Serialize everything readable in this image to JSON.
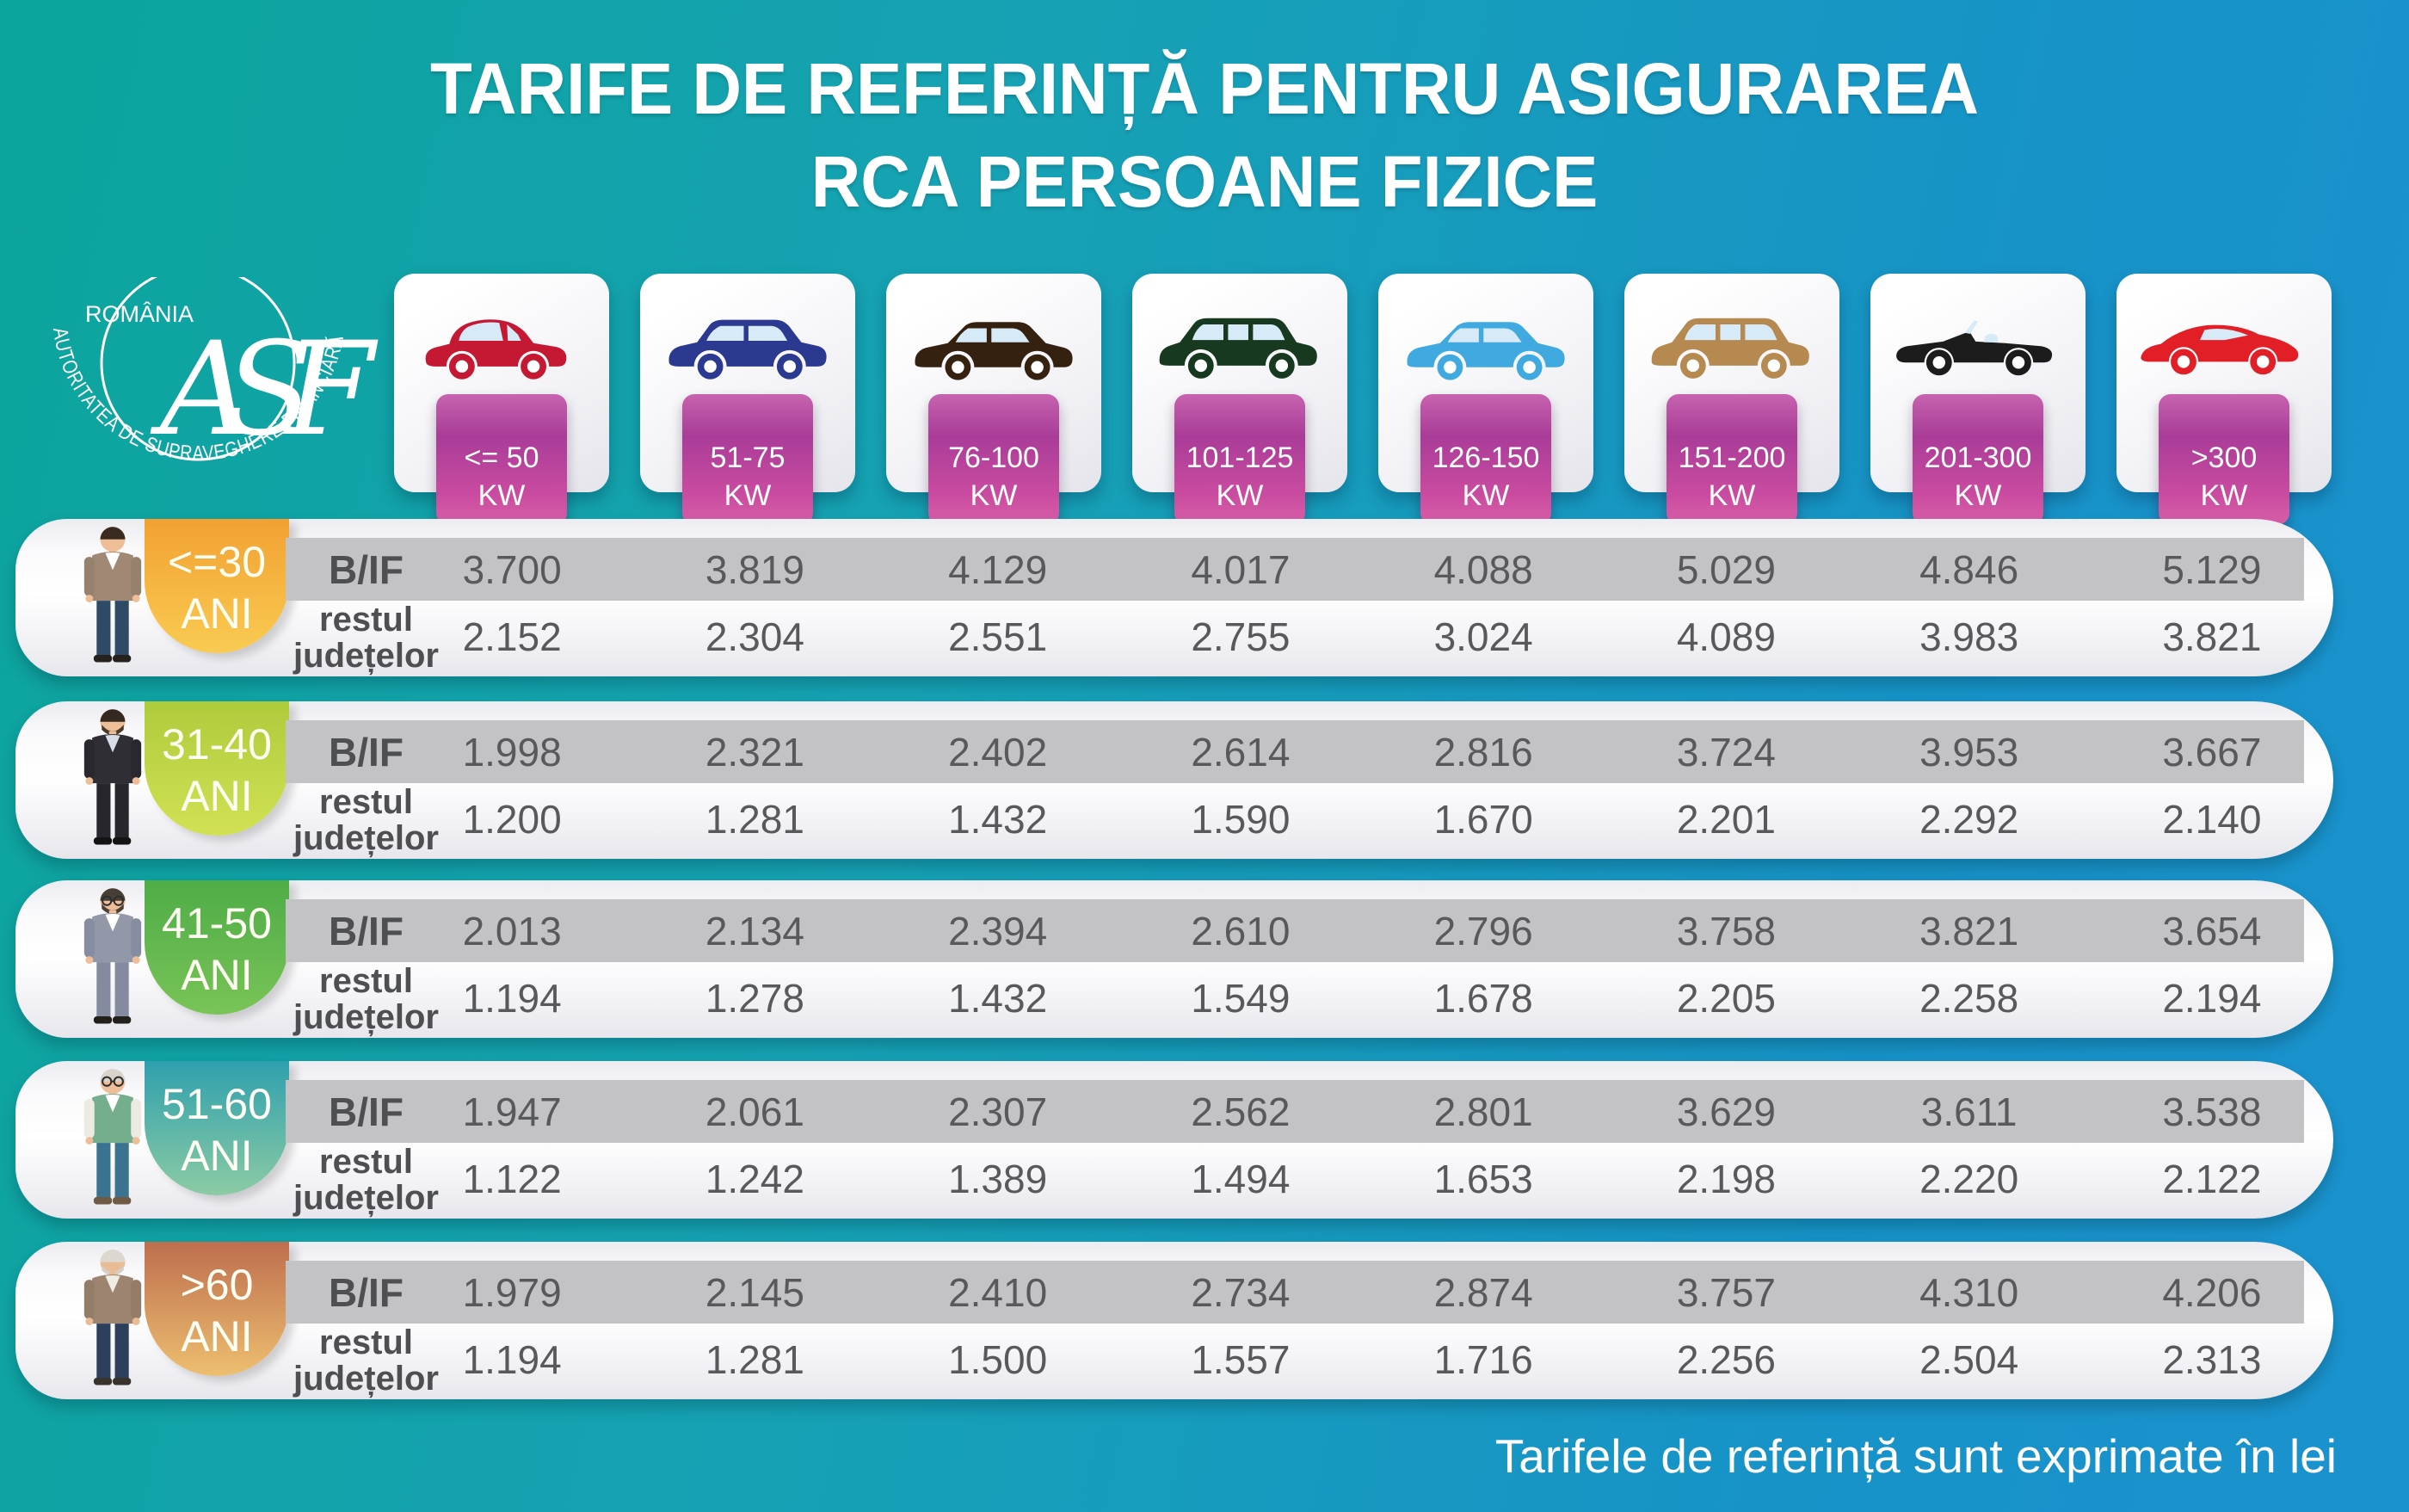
{
  "title": {
    "line1": "TARIFE DE REFERINȚĂ PENTRU ASIGURAREA",
    "line2": "RCA PERSOANE FIZICE"
  },
  "logo": {
    "country": "ROMÂNIA",
    "monogram": "ASF",
    "organization": "AUTORITATEA DE SUPRAVEGHERE FINANCIARĂ"
  },
  "footer_note": "Tarifele de referință sunt exprimate în lei",
  "row_labels": {
    "bif": "B/IF",
    "rest_line1": "restul",
    "rest_line2": "județelor"
  },
  "colors": {
    "kw_badge_magenta": "#B03A9A",
    "bif_band_gray": "#C3C3C6",
    "value_text": "#58595B",
    "background_teal": "#0CA49C",
    "background_blue": "#1B92CE"
  },
  "power_categories": [
    {
      "range": "<= 50",
      "unit": "KW",
      "icon": "car-city-hatchback-icon",
      "shape": "hatchback",
      "color": "#C41833"
    },
    {
      "range": "51-75",
      "unit": "KW",
      "icon": "car-crossover-icon",
      "shape": "suv",
      "color": "#2B3990"
    },
    {
      "range": "76-100",
      "unit": "KW",
      "icon": "car-sedan-brown-icon",
      "shape": "sedan",
      "color": "#35210F"
    },
    {
      "range": "101-125",
      "unit": "KW",
      "icon": "car-minivan-icon",
      "shape": "minivan",
      "color": "#17391F"
    },
    {
      "range": "126-150",
      "unit": "KW",
      "icon": "car-sedan-blue-icon",
      "shape": "sedan",
      "color": "#3FA9E0"
    },
    {
      "range": "151-200",
      "unit": "KW",
      "icon": "car-suv-tan-icon",
      "shape": "minivan",
      "color": "#B5894F"
    },
    {
      "range": "201-300",
      "unit": "KW",
      "icon": "car-convertible-icon",
      "shape": "convertible",
      "color": "#1C1C1C"
    },
    {
      "range": ">300",
      "unit": "KW",
      "icon": "car-sports-icon",
      "shape": "sports",
      "color": "#E21F26"
    }
  ],
  "age_groups": [
    {
      "range": "<=30",
      "unit": "ANI",
      "icon": "person-under-30-icon",
      "badge_top": "#F2A132",
      "badge_bottom": "#F9CB52",
      "bif": [
        "3.700",
        "3.819",
        "4.129",
        "4.017",
        "4.088",
        "5.029",
        "4.846",
        "5.129"
      ],
      "rest": [
        "2.152",
        "2.304",
        "2.551",
        "2.755",
        "3.024",
        "4.089",
        "3.983",
        "3.821"
      ]
    },
    {
      "range": "31-40",
      "unit": "ANI",
      "icon": "person-31-40-icon",
      "badge_top": "#AECB3C",
      "badge_bottom": "#D2E154",
      "bif": [
        "1.998",
        "2.321",
        "2.402",
        "2.614",
        "2.816",
        "3.724",
        "3.953",
        "3.667"
      ],
      "rest": [
        "1.200",
        "1.281",
        "1.432",
        "1.590",
        "1.670",
        "2.201",
        "2.292",
        "2.140"
      ]
    },
    {
      "range": "41-50",
      "unit": "ANI",
      "icon": "person-41-50-icon",
      "badge_top": "#4FAC47",
      "badge_bottom": "#79C457",
      "bif": [
        "2.013",
        "2.134",
        "2.394",
        "2.610",
        "2.796",
        "3.758",
        "3.821",
        "3.654"
      ],
      "rest": [
        "1.194",
        "1.278",
        "1.432",
        "1.549",
        "1.678",
        "2.205",
        "2.258",
        "2.194"
      ]
    },
    {
      "range": "51-60",
      "unit": "ANI",
      "icon": "person-51-60-icon",
      "badge_top": "#2FA0AE",
      "badge_bottom": "#8CCBA4",
      "bif": [
        "1.947",
        "2.061",
        "2.307",
        "2.562",
        "2.801",
        "3.629",
        "3.611",
        "3.538"
      ],
      "rest": [
        "1.122",
        "1.242",
        "1.389",
        "1.494",
        "1.653",
        "2.198",
        "2.220",
        "2.122"
      ]
    },
    {
      "range": ">60",
      "unit": "ANI",
      "icon": "person-over-60-icon",
      "badge_top": "#BE6E4E",
      "badge_bottom": "#EDBF70",
      "bif": [
        "1.979",
        "2.145",
        "2.410",
        "2.734",
        "2.874",
        "3.757",
        "4.310",
        "4.206"
      ],
      "rest": [
        "1.194",
        "1.281",
        "1.500",
        "1.557",
        "1.716",
        "2.256",
        "2.504",
        "2.313"
      ]
    }
  ],
  "chart_data": {
    "type": "table",
    "title": "TARIFE DE REFERINȚĂ PENTRU ASIGURAREA RCA PERSOANE FIZICE",
    "unit": "lei",
    "note": "Tarifele de referință sunt exprimate în lei",
    "power_columns_kw": [
      "<=50",
      "51-75",
      "76-100",
      "101-125",
      "126-150",
      "151-200",
      "201-300",
      ">300"
    ],
    "region_rows": [
      "B/IF",
      "restul județelor"
    ],
    "age_rows": [
      {
        "age": "<=30 ANI",
        "bif": [
          3700,
          3819,
          4129,
          4017,
          4088,
          5029,
          4846,
          5129
        ],
        "restul_judetelor": [
          2152,
          2304,
          2551,
          2755,
          3024,
          4089,
          3983,
          3821
        ]
      },
      {
        "age": "31-40 ANI",
        "bif": [
          1998,
          2321,
          2402,
          2614,
          2816,
          3724,
          3953,
          3667
        ],
        "restul_judetelor": [
          1200,
          1281,
          1432,
          1590,
          1670,
          2201,
          2292,
          2140
        ]
      },
      {
        "age": "41-50 ANI",
        "bif": [
          2013,
          2134,
          2394,
          2610,
          2796,
          3758,
          3821,
          3654
        ],
        "restul_judetelor": [
          1194,
          1278,
          1432,
          1549,
          1678,
          2205,
          2258,
          2194
        ]
      },
      {
        "age": "51-60 ANI",
        "bif": [
          1947,
          2061,
          2307,
          2562,
          2801,
          3629,
          3611,
          3538
        ],
        "restul_judetelor": [
          1122,
          1242,
          1389,
          1494,
          1653,
          2198,
          2220,
          2122
        ]
      },
      {
        "age": ">60 ANI",
        "bif": [
          1979,
          2145,
          2410,
          2734,
          2874,
          3757,
          4310,
          4206
        ],
        "restul_judetelor": [
          1194,
          1281,
          1500,
          1557,
          1716,
          2256,
          2504,
          2313
        ]
      }
    ]
  }
}
